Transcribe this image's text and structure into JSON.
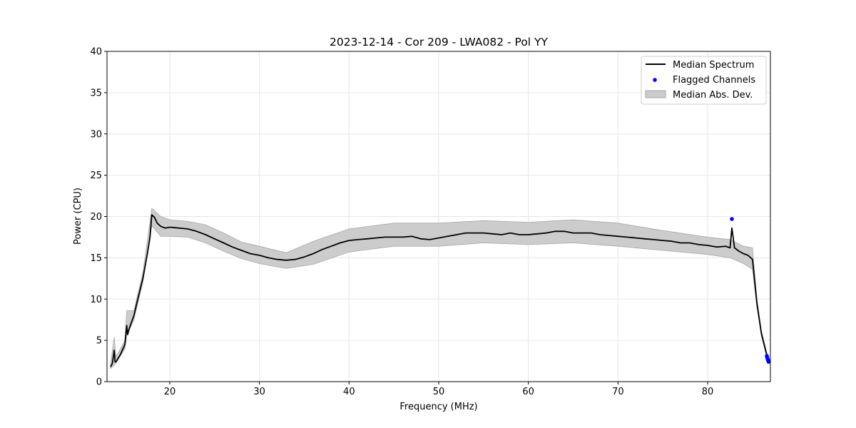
{
  "chart_data": {
    "type": "line",
    "title": "2023-12-14 - Cor 209 - LWA082 - Pol YY",
    "xlabel": "Frequency (MHz)",
    "ylabel": "Power (CPU)",
    "xlim": [
      13,
      87
    ],
    "ylim": [
      0,
      40
    ],
    "xticks": [
      20,
      30,
      40,
      50,
      60,
      70,
      80
    ],
    "yticks": [
      0,
      5,
      10,
      15,
      20,
      25,
      30,
      35,
      40
    ],
    "grid": true,
    "legend": {
      "position": "top-right",
      "entries": [
        "Median Spectrum",
        "Flagged Channels",
        "Median Abs. Dev."
      ]
    },
    "colors": {
      "median": "#000000",
      "flagged": "#0000ff",
      "mad_fill": "#cccccc",
      "mad_edge": "#a8a8a8",
      "grid": "#e6e6e6"
    },
    "series": [
      {
        "name": "Median Spectrum",
        "x": [
          13.4,
          13.6,
          13.8,
          13.9,
          14.0,
          14.5,
          15.0,
          15.2,
          15.3,
          15.5,
          16.0,
          16.5,
          17.0,
          17.5,
          17.8,
          18.0,
          18.3,
          18.6,
          19.0,
          19.5,
          20.0,
          21.0,
          22.0,
          23.0,
          24.0,
          25.0,
          26.0,
          27.0,
          28.0,
          29.0,
          30.0,
          31.0,
          32.0,
          33.0,
          34.0,
          35.0,
          36.0,
          37.0,
          38.0,
          39.0,
          40.0,
          41.0,
          42.0,
          43.0,
          44.0,
          45.0,
          46.0,
          47.0,
          48.0,
          49.0,
          50.0,
          51.0,
          52.0,
          53.0,
          54.0,
          55.0,
          56.0,
          57.0,
          58.0,
          59.0,
          60.0,
          61.0,
          62.0,
          63.0,
          64.0,
          65.0,
          66.0,
          67.0,
          68.0,
          69.0,
          70.0,
          71.0,
          72.0,
          73.0,
          74.0,
          75.0,
          76.0,
          77.0,
          78.0,
          79.0,
          80.0,
          81.0,
          82.0,
          82.5,
          82.7,
          83.0,
          83.5,
          84.0,
          84.5,
          85.0,
          85.5,
          86.0,
          86.5,
          86.8
        ],
        "y": [
          1.8,
          2.2,
          3.8,
          2.4,
          2.4,
          3.3,
          4.5,
          6.8,
          5.7,
          6.5,
          8.0,
          10.3,
          12.5,
          15.5,
          17.5,
          20.2,
          19.9,
          19.2,
          18.8,
          18.6,
          18.7,
          18.6,
          18.5,
          18.2,
          17.8,
          17.3,
          16.8,
          16.3,
          15.9,
          15.5,
          15.3,
          15.0,
          14.8,
          14.7,
          14.8,
          15.1,
          15.5,
          16.0,
          16.4,
          16.8,
          17.1,
          17.2,
          17.3,
          17.4,
          17.5,
          17.5,
          17.5,
          17.6,
          17.3,
          17.2,
          17.4,
          17.6,
          17.8,
          18.0,
          18.0,
          18.0,
          17.9,
          17.8,
          18.0,
          17.8,
          17.8,
          17.9,
          18.0,
          18.2,
          18.2,
          18.0,
          18.0,
          18.0,
          17.8,
          17.7,
          17.6,
          17.5,
          17.4,
          17.3,
          17.2,
          17.1,
          17.0,
          16.8,
          16.8,
          16.6,
          16.5,
          16.3,
          16.4,
          16.2,
          18.6,
          16.2,
          15.8,
          15.5,
          15.3,
          14.8,
          9.5,
          5.8,
          3.6,
          2.5
        ]
      },
      {
        "name": "Median Abs. Dev.",
        "x": [
          13.4,
          13.8,
          14.0,
          15.0,
          15.2,
          16.0,
          17.0,
          18.0,
          19.0,
          20.0,
          22.0,
          24.0,
          26.0,
          28.0,
          30.0,
          33.0,
          36.0,
          40.0,
          45.0,
          50.0,
          55.0,
          60.0,
          65.0,
          70.0,
          75.0,
          80.0,
          82.5,
          84.0,
          85.0,
          85.5,
          86.0,
          86.8
        ],
        "lower": [
          1.6,
          2.0,
          2.2,
          4.0,
          5.5,
          7.5,
          12.0,
          18.9,
          17.6,
          17.6,
          17.5,
          16.8,
          15.8,
          14.9,
          14.3,
          13.7,
          14.2,
          15.7,
          16.4,
          16.4,
          16.8,
          16.6,
          16.8,
          16.4,
          15.9,
          15.4,
          15.0,
          14.3,
          13.6,
          9.0,
          5.6,
          2.3
        ],
        "upper": [
          2.2,
          5.4,
          3.0,
          5.0,
          8.6,
          8.6,
          13.2,
          21.0,
          20.0,
          19.6,
          19.4,
          19.0,
          18.0,
          16.9,
          16.4,
          15.6,
          17.0,
          18.5,
          19.2,
          19.2,
          19.5,
          19.3,
          19.6,
          19.2,
          18.3,
          17.5,
          17.2,
          16.4,
          16.2,
          10.0,
          6.2,
          2.7
        ]
      },
      {
        "name": "Flagged Channels",
        "x": [
          82.7,
          86.6,
          86.65,
          86.7,
          86.75,
          86.8
        ],
        "y": [
          19.7,
          3.1,
          2.9,
          2.7,
          2.55,
          2.4
        ]
      }
    ]
  }
}
